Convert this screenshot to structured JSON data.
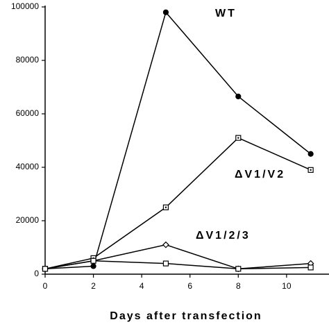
{
  "chart_data": {
    "type": "line",
    "x_label": "Days after transfection",
    "x": [
      0,
      2,
      5,
      8,
      11
    ],
    "series": [
      {
        "name": "WT",
        "color": "#000000",
        "marker": "circle",
        "values": [
          2000,
          3000,
          98000,
          66500,
          45000
        ]
      },
      {
        "name": "ΔV1/V2",
        "color": "#000000",
        "marker": "square-dot",
        "values": [
          2000,
          6000,
          25000,
          51000,
          39000
        ]
      },
      {
        "name": "ΔV1/2/3",
        "color": "#000000",
        "marker": "diamond",
        "values": [
          2000,
          5000,
          11000,
          2000,
          4000
        ]
      },
      {
        "color": "#000000",
        "marker": "square",
        "values": [
          2000,
          5000,
          4000,
          2000,
          2500
        ]
      }
    ],
    "xlim": [
      0,
      11.7
    ],
    "ylim": [
      0,
      100000
    ],
    "xticks": [
      0,
      2,
      4,
      6,
      8,
      10
    ],
    "yticks": [
      0,
      20000,
      40000,
      60000,
      80000,
      100000
    ],
    "grid": false
  }
}
